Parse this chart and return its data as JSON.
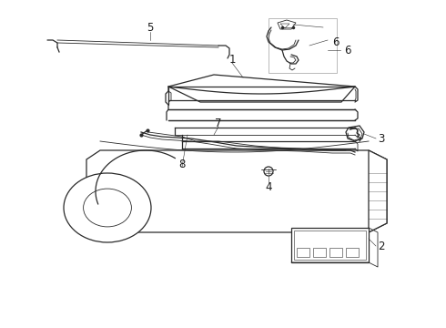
{
  "bg_color": "#ffffff",
  "line_color": "#2a2a2a",
  "label_color": "#1a1a1a",
  "label_fontsize": 8.5,
  "fig_width": 4.9,
  "fig_height": 3.6,
  "dpi": 100
}
